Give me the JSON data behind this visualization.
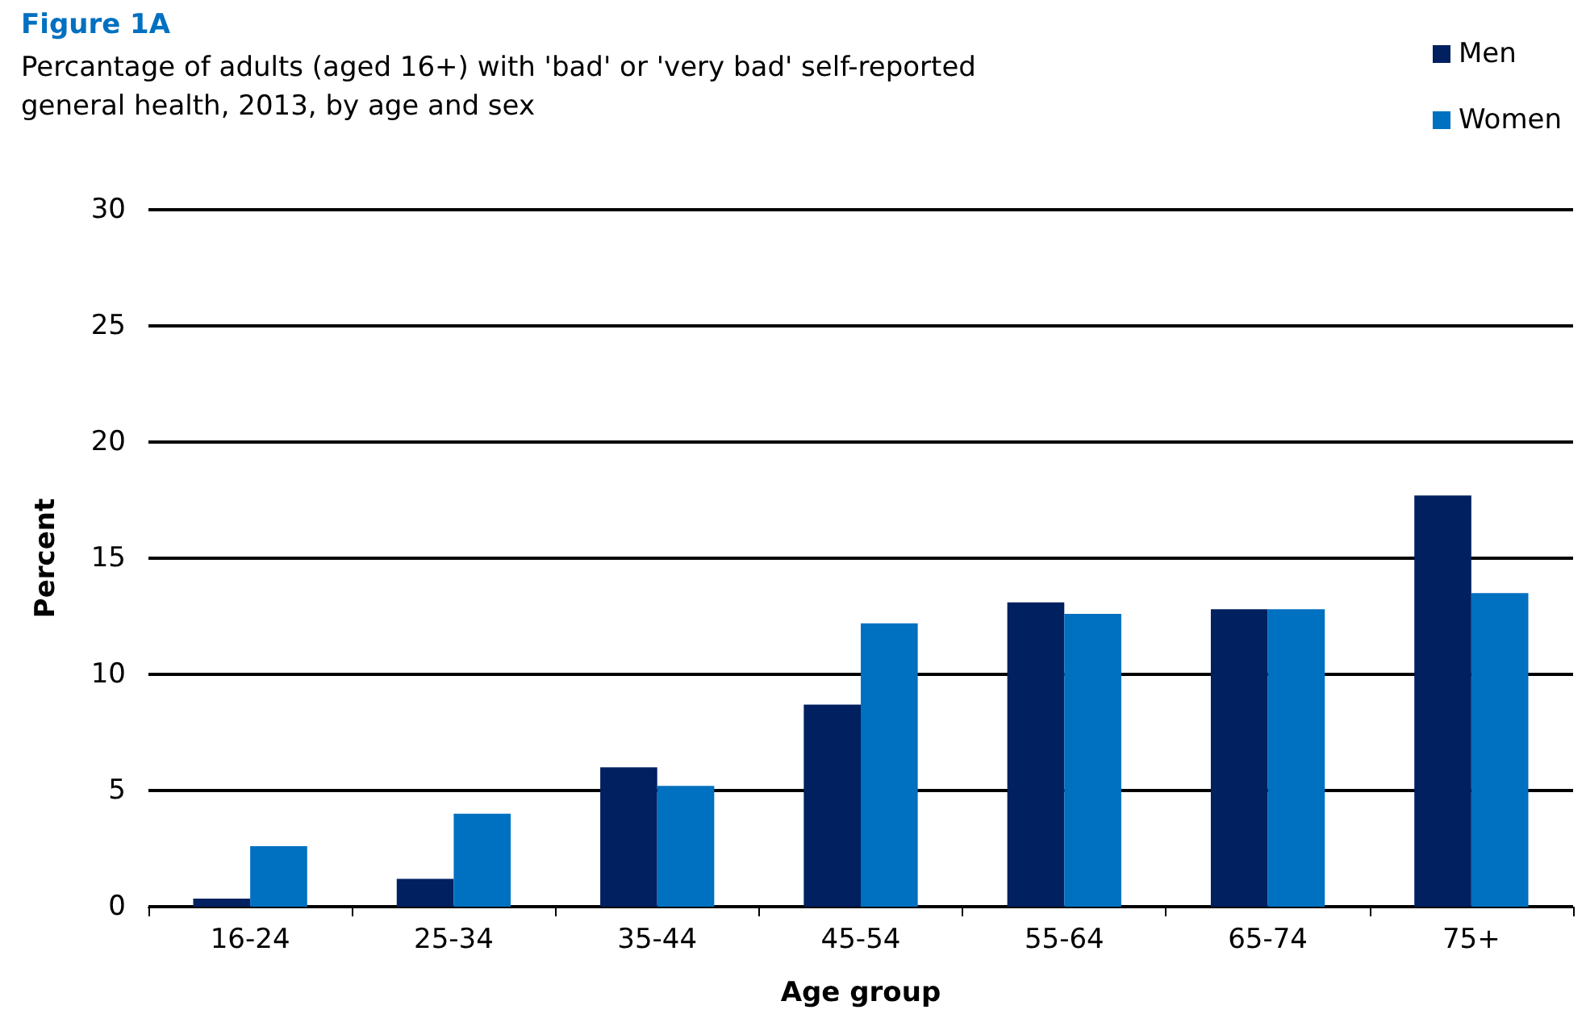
{
  "chart_data": {
    "type": "bar",
    "title": "Figure 1A",
    "subtitle": "Percantage of adults (aged 16+) with 'bad' or 'very bad' self-reported\ngeneral health, 2013, by age and sex",
    "xlabel": "Age group",
    "ylabel": "Percent",
    "categories": [
      "16-24",
      "25-34",
      "35-44",
      "45-54",
      "55-64",
      "65-74",
      "75+"
    ],
    "series": [
      {
        "name": "Men",
        "color": "#002060",
        "values": [
          0.35,
          1.2,
          6.0,
          8.7,
          13.1,
          12.8,
          17.7
        ]
      },
      {
        "name": "Women",
        "color": "#0070c0",
        "values": [
          2.6,
          4.0,
          5.2,
          12.2,
          12.6,
          12.8,
          13.5
        ]
      }
    ],
    "ylim": [
      0,
      30
    ],
    "yticks": [
      0,
      5,
      10,
      15,
      20,
      25,
      30
    ],
    "grid": "y",
    "legend": "top right"
  }
}
